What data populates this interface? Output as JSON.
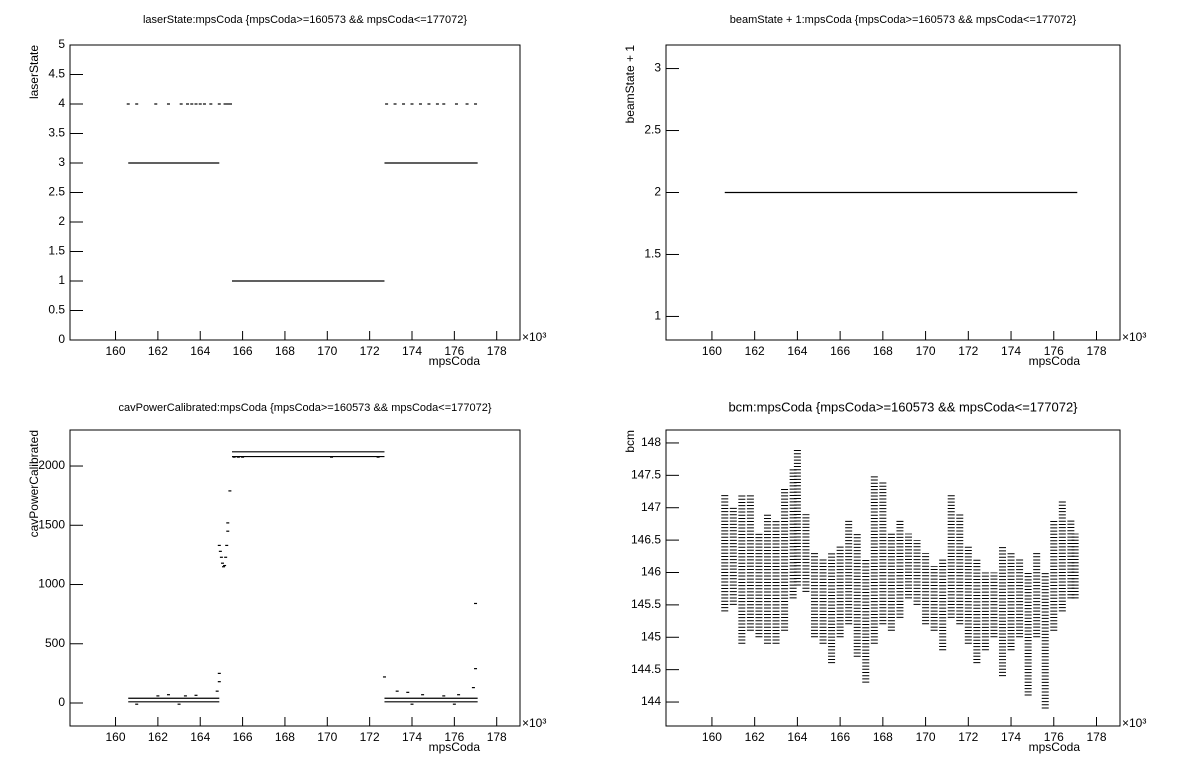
{
  "chart_data": [
    {
      "type": "scatter",
      "title": "laserState:mpsCoda {mpsCoda>=160573 && mpsCoda<=177072}",
      "x_label": "mpsCoda",
      "y_label": "laserState",
      "x_multiplier": "×10³",
      "xlim": [
        157.85,
        179.1
      ],
      "xticks": [
        160,
        162,
        164,
        166,
        168,
        170,
        172,
        174,
        176,
        178
      ],
      "ylim": [
        0,
        5
      ],
      "yticks": [
        0,
        0.5,
        1,
        1.5,
        2,
        2.5,
        3,
        3.5,
        4,
        4.5,
        5
      ],
      "series": [
        {
          "mode": "line",
          "color": "#000000",
          "x": [
            160.6,
            164.9,
            165.0,
            165.1,
            165.5,
            165.5,
            165.5,
            172.7,
            172.7,
            172.7,
            177.1
          ],
          "values": [
            3,
            3,
            null,
            4,
            4,
            null,
            1,
            1,
            null,
            3,
            3
          ]
        },
        {
          "mode": "points",
          "color": "#000000",
          "x": [
            160.6,
            161.0,
            161.9,
            162.5,
            163.1,
            163.4,
            163.6,
            163.8,
            164.0,
            164.2,
            164.5,
            164.9,
            172.8,
            173.2,
            173.6,
            174.0,
            174.4,
            174.8,
            175.2,
            175.5,
            176.1,
            176.6,
            177.0
          ],
          "values": [
            4,
            4,
            4,
            4,
            4,
            4,
            4,
            4,
            4,
            4,
            4,
            4,
            4,
            4,
            4,
            4,
            4,
            4,
            4,
            4,
            4,
            4,
            4
          ]
        }
      ]
    },
    {
      "type": "scatter",
      "title": "beamState + 1:mpsCoda {mpsCoda>=160573 && mpsCoda<=177072}",
      "x_label": "mpsCoda",
      "y_label": "beamState + 1",
      "x_multiplier": "×10³",
      "xlim": [
        157.85,
        179.1
      ],
      "xticks": [
        160,
        162,
        164,
        166,
        168,
        170,
        172,
        174,
        176,
        178
      ],
      "ylim": [
        0.81,
        3.19
      ],
      "yticks": [
        1,
        1.5,
        2,
        2.5,
        3
      ],
      "series": [
        {
          "mode": "line",
          "color": "#000000",
          "x": [
            160.6,
            177.1
          ],
          "values": [
            2,
            2
          ]
        }
      ]
    },
    {
      "type": "scatter",
      "title": "cavPowerCalibrated:mpsCoda {mpsCoda>=160573 && mpsCoda<=177072}",
      "x_label": "mpsCoda",
      "y_label": "cavPowerCalibrated",
      "x_multiplier": "×10³",
      "xlim": [
        157.85,
        179.1
      ],
      "xticks": [
        160,
        162,
        164,
        166,
        168,
        170,
        172,
        174,
        176,
        178
      ],
      "ylim": [
        -194,
        2304
      ],
      "yticks": [
        0,
        500,
        1000,
        1500,
        2000
      ],
      "series": [
        {
          "mode": "line",
          "color": "#000000",
          "x": [
            160.6,
            164.9,
            165.0,
            160.6,
            164.9,
            165.0,
            165.5,
            172.7,
            172.7,
            165.5,
            172.7,
            172.7,
            172.7,
            177.1,
            177.1,
            172.7,
            177.1
          ],
          "values": [
            40,
            40,
            null,
            10,
            10,
            null,
            2120,
            2120,
            null,
            2080,
            2080,
            null,
            40,
            40,
            null,
            10,
            10
          ]
        },
        {
          "mode": "points",
          "color": "#000000",
          "x": [
            164.9,
            164.95,
            165.0,
            165.05,
            165.1,
            165.15,
            165.2,
            165.25,
            165.3,
            165.3,
            165.4,
            164.9,
            164.9,
            164.8,
            165.6,
            165.8,
            166.0,
            170.2,
            172.4,
            177.0,
            177.0,
            176.9,
            172.7,
            173.3,
            173.8,
            162.0,
            162.5,
            163.3,
            163.8,
            174.5,
            175.5,
            176.2,
            161.0,
            163.0,
            174.0,
            176.0
          ],
          "values": [
            1330,
            1280,
            1230,
            1180,
            1150,
            1160,
            1230,
            1330,
            1450,
            1520,
            1790,
            250,
            180,
            100,
            2075,
            2075,
            2075,
            2075,
            2075,
            840,
            290,
            130,
            220,
            100,
            90,
            60,
            70,
            60,
            65,
            70,
            60,
            70,
            -10,
            -10,
            -10,
            -10
          ]
        }
      ]
    },
    {
      "type": "scatter",
      "title": "bcm:mpsCoda {mpsCoda>=160573 && mpsCoda<=177072}",
      "x_label": "mpsCoda",
      "y_label": "bcm",
      "x_multiplier": "×10³",
      "xlim": [
        157.85,
        179.1
      ],
      "xticks": [
        160,
        162,
        164,
        166,
        168,
        170,
        172,
        174,
        176,
        178
      ],
      "ylim": [
        143.63,
        148.2
      ],
      "yticks": [
        144,
        144.5,
        145,
        145.5,
        146,
        146.5,
        147,
        147.5,
        148
      ],
      "series": [
        {
          "mode": "range",
          "color": "#000000",
          "x": [
            160.6,
            161.0,
            161.4,
            161.8,
            162.2,
            162.6,
            163.0,
            163.4,
            163.8,
            164.0,
            164.4,
            164.8,
            165.2,
            165.6,
            166.0,
            166.4,
            166.8,
            167.2,
            167.6,
            168.0,
            168.4,
            168.8,
            169.2,
            169.6,
            170.0,
            170.4,
            170.8,
            171.2,
            171.6,
            172.0,
            172.4,
            172.8,
            173.2,
            173.6,
            174.0,
            174.4,
            174.8,
            175.2,
            175.6,
            176.0,
            176.4,
            176.8,
            177.0
          ],
          "low": [
            145.4,
            145.5,
            144.9,
            145.1,
            145.0,
            144.9,
            144.9,
            145.1,
            145.6,
            145.8,
            145.7,
            145.0,
            144.9,
            144.6,
            145.0,
            145.2,
            144.7,
            144.3,
            144.9,
            145.2,
            145.1,
            145.3,
            145.6,
            145.5,
            145.2,
            145.1,
            144.8,
            145.3,
            145.2,
            144.9,
            144.6,
            144.8,
            145.0,
            144.4,
            144.8,
            145.0,
            144.1,
            145.0,
            143.9,
            145.1,
            145.4,
            145.6,
            145.6
          ],
          "high": [
            147.2,
            147.0,
            147.2,
            147.2,
            146.6,
            146.9,
            146.8,
            147.3,
            147.6,
            147.9,
            146.9,
            146.3,
            146.2,
            146.3,
            146.4,
            146.8,
            146.6,
            146.2,
            147.5,
            147.4,
            146.6,
            146.8,
            146.6,
            146.5,
            146.3,
            146.1,
            146.2,
            147.2,
            146.9,
            146.4,
            146.2,
            146.0,
            146.0,
            146.4,
            146.3,
            146.2,
            146.0,
            146.3,
            146.0,
            146.8,
            147.1,
            146.8,
            146.6
          ]
        }
      ]
    }
  ]
}
